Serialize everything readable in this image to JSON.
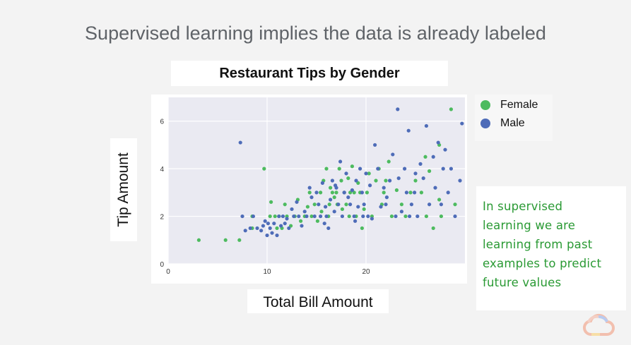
{
  "slide": {
    "title": "Supervised learning implies the data is already labeled"
  },
  "note": {
    "text": "In supervised\nlearning we are\nlearning from past\nexamples to predict\nfuture values",
    "color": "#2a9a34"
  },
  "icons": {
    "logo": "google-cloud-logo"
  },
  "chart_data": {
    "type": "scatter",
    "title": "Restaurant Tips by Gender",
    "xlabel": "Total Bill Amount",
    "ylabel": "Tip Amount",
    "xlim": [
      0,
      30
    ],
    "ylim": [
      0,
      7
    ],
    "x_ticks": [
      0,
      10,
      20
    ],
    "y_ticks": [
      0,
      2,
      4,
      6
    ],
    "grid": true,
    "background": "#eaeaf2",
    "legend_position": "right",
    "series": [
      {
        "name": "Female",
        "color": "#4dbb5f",
        "points": [
          [
            3.1,
            1.0
          ],
          [
            5.8,
            1.0
          ],
          [
            7.2,
            1.0
          ],
          [
            8.5,
            2.0
          ],
          [
            8.5,
            1.5
          ],
          [
            9.7,
            4.0
          ],
          [
            10.3,
            2.0
          ],
          [
            10.4,
            2.6
          ],
          [
            10.8,
            2.0
          ],
          [
            11.0,
            1.5
          ],
          [
            11.2,
            2.0
          ],
          [
            11.5,
            1.5
          ],
          [
            11.8,
            2.5
          ],
          [
            12.0,
            2.0
          ],
          [
            12.4,
            1.6
          ],
          [
            12.8,
            2.0
          ],
          [
            13.1,
            2.7
          ],
          [
            13.4,
            1.8
          ],
          [
            13.8,
            2.0
          ],
          [
            14.1,
            2.4
          ],
          [
            14.3,
            3.0
          ],
          [
            14.5,
            2.0
          ],
          [
            14.8,
            2.5
          ],
          [
            15.1,
            1.8
          ],
          [
            15.4,
            3.0
          ],
          [
            15.5,
            2.2
          ],
          [
            15.7,
            3.5
          ],
          [
            16.0,
            4.0
          ],
          [
            16.2,
            2.0
          ],
          [
            16.3,
            2.5
          ],
          [
            16.4,
            3.2
          ],
          [
            16.6,
            3.0
          ],
          [
            16.8,
            2.8
          ],
          [
            17.0,
            3.0
          ],
          [
            17.1,
            2.5
          ],
          [
            17.3,
            4.0
          ],
          [
            17.5,
            3.5
          ],
          [
            17.6,
            2.3
          ],
          [
            17.8,
            3.0
          ],
          [
            18.0,
            2.5
          ],
          [
            18.2,
            3.6
          ],
          [
            18.3,
            2.0
          ],
          [
            18.4,
            3.0
          ],
          [
            18.6,
            4.1
          ],
          [
            18.8,
            3.0
          ],
          [
            19.0,
            2.0
          ],
          [
            19.2,
            3.4
          ],
          [
            19.4,
            3.0
          ],
          [
            19.6,
            1.5
          ],
          [
            19.8,
            2.3
          ],
          [
            20.1,
            3.0
          ],
          [
            20.3,
            3.8
          ],
          [
            20.6,
            2.0
          ],
          [
            21.0,
            3.5
          ],
          [
            21.3,
            4.0
          ],
          [
            21.6,
            2.5
          ],
          [
            21.8,
            3.0
          ],
          [
            22.0,
            3.5
          ],
          [
            22.3,
            4.3
          ],
          [
            22.6,
            2.0
          ],
          [
            23.1,
            3.1
          ],
          [
            23.6,
            2.5
          ],
          [
            24.0,
            2.0
          ],
          [
            24.5,
            3.0
          ],
          [
            25.0,
            3.5
          ],
          [
            25.6,
            3.0
          ],
          [
            26.0,
            4.5
          ],
          [
            26.1,
            2.0
          ],
          [
            26.4,
            3.9
          ],
          [
            26.8,
            1.5
          ],
          [
            27.4,
            2.7
          ],
          [
            27.4,
            5.0
          ],
          [
            27.6,
            2.0
          ],
          [
            28.6,
            6.5
          ],
          [
            29.0,
            2.5
          ]
        ]
      },
      {
        "name": "Male",
        "color": "#4e6cb8",
        "points": [
          [
            7.3,
            5.1
          ],
          [
            7.5,
            2.0
          ],
          [
            7.8,
            1.4
          ],
          [
            8.3,
            1.5
          ],
          [
            8.6,
            2.0
          ],
          [
            9.0,
            1.5
          ],
          [
            9.4,
            1.4
          ],
          [
            9.6,
            1.6
          ],
          [
            9.8,
            1.8
          ],
          [
            10.0,
            1.2
          ],
          [
            10.1,
            1.7
          ],
          [
            10.3,
            1.5
          ],
          [
            10.5,
            1.3
          ],
          [
            10.7,
            1.7
          ],
          [
            11.0,
            1.2
          ],
          [
            11.2,
            2.0
          ],
          [
            11.4,
            1.6
          ],
          [
            11.6,
            2.0
          ],
          [
            11.8,
            1.7
          ],
          [
            12.0,
            1.9
          ],
          [
            12.2,
            1.5
          ],
          [
            12.5,
            2.3
          ],
          [
            12.7,
            2.0
          ],
          [
            13.0,
            2.6
          ],
          [
            13.2,
            2.0
          ],
          [
            13.5,
            1.6
          ],
          [
            13.8,
            2.2
          ],
          [
            14.0,
            2.0
          ],
          [
            14.3,
            3.2
          ],
          [
            14.5,
            2.8
          ],
          [
            14.8,
            2.0
          ],
          [
            15.0,
            3.0
          ],
          [
            15.2,
            2.5
          ],
          [
            15.4,
            2.0
          ],
          [
            15.6,
            3.4
          ],
          [
            15.8,
            1.7
          ],
          [
            16.0,
            2.0
          ],
          [
            16.2,
            1.5
          ],
          [
            16.4,
            2.7
          ],
          [
            16.6,
            3.5
          ],
          [
            16.8,
            2.2
          ],
          [
            17.0,
            3.2
          ],
          [
            17.2,
            2.5
          ],
          [
            17.4,
            4.3
          ],
          [
            17.6,
            2.0
          ],
          [
            17.8,
            3.0
          ],
          [
            18.0,
            3.8
          ],
          [
            18.2,
            2.8
          ],
          [
            18.4,
            2.5
          ],
          [
            18.6,
            3.1
          ],
          [
            18.8,
            2.0
          ],
          [
            19.0,
            3.5
          ],
          [
            19.2,
            2.4
          ],
          [
            19.4,
            4.0
          ],
          [
            19.6,
            3.0
          ],
          [
            19.8,
            2.5
          ],
          [
            20.0,
            3.8
          ],
          [
            20.2,
            2.0
          ],
          [
            20.4,
            3.3
          ],
          [
            20.6,
            1.9
          ],
          [
            20.9,
            5.0
          ],
          [
            21.2,
            4.0
          ],
          [
            21.5,
            2.4
          ],
          [
            21.8,
            3.2
          ],
          [
            22.0,
            2.5
          ],
          [
            22.4,
            3.5
          ],
          [
            22.7,
            4.6
          ],
          [
            23.0,
            2.0
          ],
          [
            23.3,
            3.6
          ],
          [
            23.6,
            2.2
          ],
          [
            23.9,
            4.0
          ],
          [
            24.1,
            3.0
          ],
          [
            24.3,
            5.6
          ],
          [
            24.6,
            2.5
          ],
          [
            24.9,
            3.0
          ],
          [
            25.2,
            2.0
          ],
          [
            25.5,
            4.2
          ],
          [
            25.8,
            3.6
          ],
          [
            26.1,
            5.8
          ],
          [
            26.4,
            2.5
          ],
          [
            26.8,
            4.5
          ],
          [
            27.0,
            3.2
          ],
          [
            27.3,
            5.1
          ],
          [
            27.6,
            2.5
          ],
          [
            28.0,
            4.8
          ],
          [
            28.3,
            3.0
          ],
          [
            28.6,
            4.0
          ],
          [
            29.0,
            2.0
          ],
          [
            29.5,
            3.5
          ],
          [
            29.7,
            5.9
          ],
          [
            23.2,
            6.5
          ],
          [
            24.4,
            2.0
          ],
          [
            25.0,
            3.8
          ],
          [
            27.8,
            4.0
          ],
          [
            22.1,
            2.8
          ],
          [
            19.7,
            2.0
          ],
          [
            18.9,
            1.8
          ],
          [
            16.9,
            3.3
          ],
          [
            15.9,
            2.4
          ]
        ]
      }
    ]
  }
}
